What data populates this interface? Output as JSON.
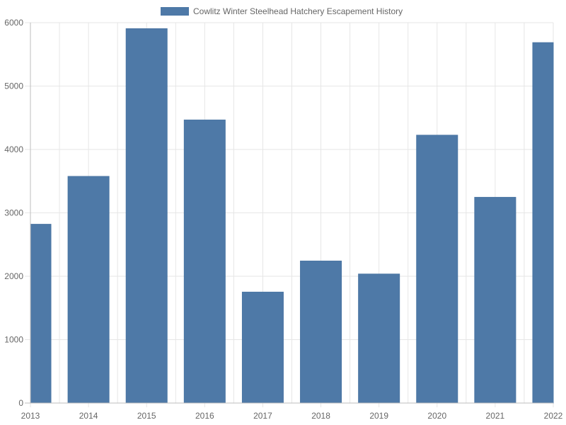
{
  "chart_data": {
    "type": "bar",
    "title": "",
    "xlabel": "",
    "ylabel": "",
    "categories": [
      "2013",
      "2014",
      "2015",
      "2016",
      "2017",
      "2018",
      "2019",
      "2020",
      "2021",
      "2022"
    ],
    "series": [
      {
        "name": "Cowlitz Winter Steelhead Hatchery Escapement History",
        "values": [
          2820,
          3575,
          5905,
          4465,
          1750,
          2240,
          2035,
          4225,
          3245,
          5685
        ],
        "color": "#4e79a7"
      }
    ],
    "ylim": [
      0,
      6000
    ],
    "yticks": [
      0,
      1000,
      2000,
      3000,
      4000,
      5000,
      6000
    ],
    "grid": true,
    "legend_position": "top"
  }
}
